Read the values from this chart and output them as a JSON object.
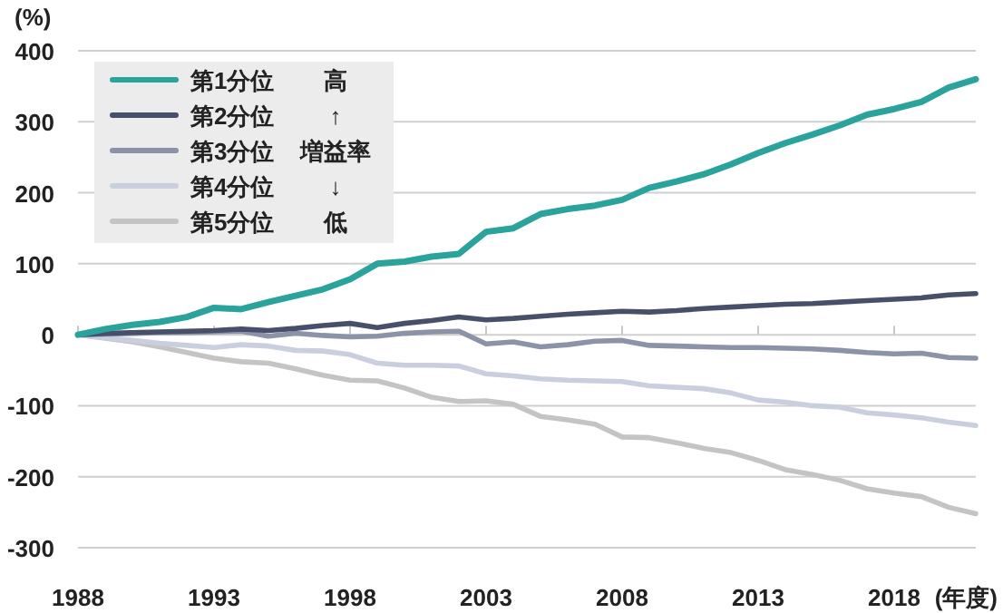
{
  "chart_data": {
    "type": "line",
    "ylabel": "(%)",
    "xlabel": "(年度)",
    "x": [
      1988,
      1989,
      1990,
      1991,
      1992,
      1993,
      1994,
      1995,
      1996,
      1997,
      1998,
      1999,
      2000,
      2001,
      2002,
      2003,
      2004,
      2005,
      2006,
      2007,
      2008,
      2009,
      2010,
      2011,
      2012,
      2013,
      2014,
      2015,
      2016,
      2017,
      2018,
      2019,
      2020,
      2021
    ],
    "xlim": [
      1988,
      2021
    ],
    "xticks": [
      1988,
      1993,
      1998,
      2003,
      2008,
      2013,
      2018
    ],
    "ylim": [
      -300,
      400
    ],
    "yticks": [
      -300,
      -200,
      -100,
      0,
      100,
      200,
      300,
      400
    ],
    "grid": "y",
    "legend": "top left",
    "marker": "none",
    "line_style": "solid",
    "annotations": [
      "高",
      "↑",
      "増益率",
      "↓",
      "低"
    ],
    "series": [
      {
        "name": "第1分位",
        "color": "#2aa39c",
        "values": [
          0,
          8,
          14,
          18,
          25,
          38,
          36,
          46,
          55,
          64,
          78,
          100,
          103,
          110,
          114,
          145,
          150,
          170,
          177,
          182,
          190,
          207,
          216,
          226,
          240,
          256,
          270,
          282,
          295,
          310,
          318,
          328,
          348,
          360
        ]
      },
      {
        "name": "第2分位",
        "color": "#474f6b",
        "values": [
          0,
          2,
          3,
          4,
          5,
          6,
          8,
          6,
          9,
          13,
          16,
          10,
          16,
          20,
          25,
          21,
          23,
          26,
          29,
          31,
          33,
          32,
          34,
          37,
          39,
          41,
          43,
          44,
          46,
          48,
          50,
          52,
          56,
          58
        ]
      },
      {
        "name": "第3分位",
        "color": "#8c93a8",
        "values": [
          0,
          1,
          2,
          3,
          3,
          4,
          5,
          -2,
          2,
          -1,
          -3,
          -2,
          2,
          4,
          5,
          -13,
          -10,
          -17,
          -14,
          -9,
          -8,
          -15,
          -16,
          -17,
          -18,
          -18,
          -19,
          -20,
          -22,
          -25,
          -27,
          -26,
          -32,
          -33
        ]
      },
      {
        "name": "第4分位",
        "color": "#c9cfdf",
        "values": [
          0,
          -4,
          -8,
          -12,
          -15,
          -18,
          -14,
          -16,
          -22,
          -23,
          -28,
          -40,
          -43,
          -43,
          -44,
          -55,
          -58,
          -62,
          -64,
          -65,
          -66,
          -72,
          -74,
          -76,
          -82,
          -92,
          -95,
          -100,
          -102,
          -110,
          -113,
          -117,
          -123,
          -128
        ]
      },
      {
        "name": "第5分位",
        "color": "#c4c4c4",
        "values": [
          0,
          -5,
          -10,
          -17,
          -25,
          -33,
          -38,
          -40,
          -48,
          -57,
          -64,
          -65,
          -75,
          -88,
          -94,
          -93,
          -98,
          -115,
          -120,
          -126,
          -144,
          -145,
          -152,
          -160,
          -166,
          -177,
          -190,
          -197,
          -205,
          -217,
          -223,
          -228,
          -243,
          -252
        ]
      }
    ]
  }
}
